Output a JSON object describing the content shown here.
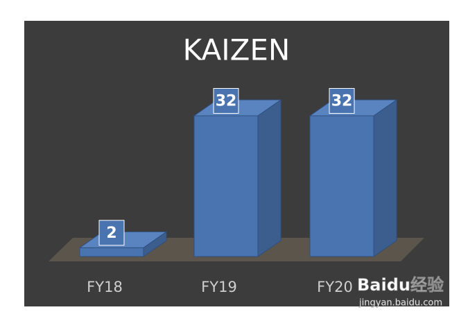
{
  "chart_data": {
    "type": "bar3d",
    "title": "KAIZEN",
    "categories": [
      "FY18",
      "FY19",
      "FY20"
    ],
    "values": [
      2,
      32,
      32
    ],
    "color": "#4a74b0",
    "watermark": [
      "Baidu经验",
      "jingyan.baidu.com"
    ]
  }
}
